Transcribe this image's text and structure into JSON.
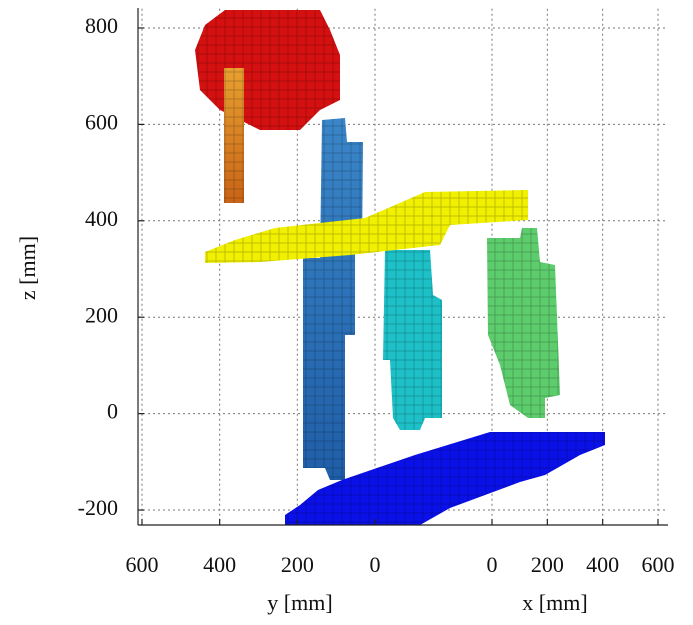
{
  "chart_data": {
    "type": "voxel",
    "zlabel": "z [mm]",
    "ylabel": "y [mm]",
    "xlabel": "x [mm]",
    "zlim": [
      -230,
      840
    ],
    "zticks": [
      800,
      600,
      400,
      200,
      0,
      -200
    ],
    "ylim": [
      600,
      0
    ],
    "yticks": [
      600,
      400,
      200,
      0
    ],
    "xlim": [
      0,
      600
    ],
    "xticks": [
      0,
      200,
      400,
      600
    ],
    "grid": true
  }
}
